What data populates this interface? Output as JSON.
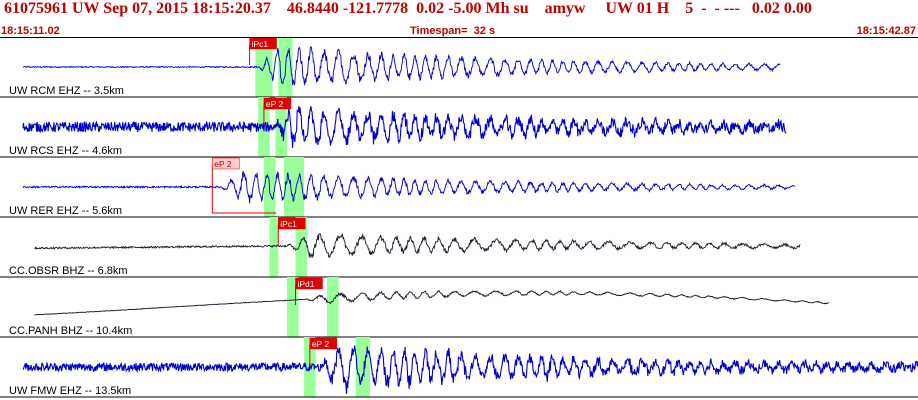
{
  "header": {
    "title": "61075961 UW Sep 07, 2015 18:15:20.37    46.8440 -121.7778  0.02 -5.00 Mh su    amyw     UW 01 H    5  -  - ---   0.02 0.00",
    "start_time": "18:15:11.02",
    "timespan": "Timespan=  32 s",
    "end_time": "18:15:42.87"
  },
  "colors": {
    "header_text": "#c00000",
    "trace": "#0000cc",
    "trace_long_period": "#1a1a2e",
    "pick_box": "#e00000",
    "pick_box_light": "#ffcccc",
    "window_highlight": "#99ff99",
    "separator": "#000000"
  },
  "chart_data": {
    "type": "line",
    "x_range": [
      0,
      32
    ],
    "x_unit": "s",
    "traces": [
      {
        "label": "UW RCM EHZ -- 3.5km",
        "pick_label": "iPc1",
        "pick_time": 8.7,
        "pick_style": "solid",
        "windows": [
          [
            8.9,
            9.5
          ],
          [
            9.7,
            10.2
          ]
        ],
        "signal_end": 27.2,
        "amplitude": 0.9,
        "noise": 0.02,
        "long_period": false,
        "slow_drift": 0
      },
      {
        "label": "UW RCS EHZ -- 4.6km",
        "pick_label": "eP 2",
        "pick_time": 9.2,
        "pick_style": "solid",
        "windows": [
          [
            9.0,
            9.4
          ],
          [
            9.6,
            10.0
          ]
        ],
        "signal_end": 27.4,
        "amplitude": 0.85,
        "noise": 0.18,
        "long_period": false,
        "slow_drift": 0
      },
      {
        "label": "UW RER EHZ -- 5.6km",
        "pick_label": "eP 2",
        "pick_time": 7.4,
        "pick_style": "light",
        "windows": [
          [
            9.2,
            9.6
          ],
          [
            9.9,
            10.6
          ]
        ],
        "signal_end": 27.7,
        "amplitude": 0.7,
        "noise": 0.03,
        "long_period": false,
        "slow_drift": 0
      },
      {
        "label": "CC.OBSR BHZ -- 6.8km",
        "pick_label": "iPc1",
        "pick_time": 9.7,
        "pick_style": "solid",
        "windows": [
          [
            9.4,
            9.7
          ],
          [
            10.3,
            10.7
          ]
        ],
        "signal_end": 27.9,
        "amplitude": 0.55,
        "noise": 0.03,
        "long_period": true,
        "slow_drift": 0.08
      },
      {
        "label": "CC.PANH BHZ -- 10.4km",
        "pick_label": "iPd1",
        "pick_time": 10.3,
        "pick_style": "solid",
        "windows": [
          [
            10.0,
            10.4
          ],
          [
            11.4,
            11.8
          ]
        ],
        "signal_end": 28.9,
        "amplitude": 0.22,
        "noise": 0.01,
        "long_period": true,
        "slow_drift": 0.55
      },
      {
        "label": "UW FMW EHZ -- 13.5km",
        "pick_label": "eP 2",
        "pick_time": 10.8,
        "pick_style": "solid",
        "windows": [
          [
            10.6,
            11.0
          ],
          [
            12.4,
            12.9
          ]
        ],
        "signal_end": 32.0,
        "amplitude": 0.95,
        "noise": 0.15,
        "long_period": false,
        "slow_drift": 0
      }
    ]
  }
}
